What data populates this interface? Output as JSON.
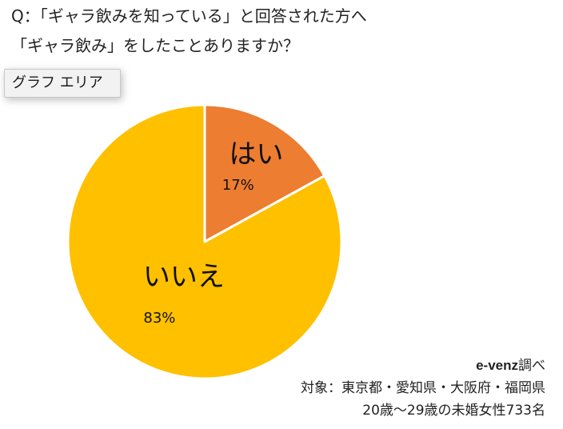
{
  "question": {
    "line1": "Q：「ギャラ飲みを知っている」と回答された方へ",
    "line2": "「ギャラ飲み」をしたことありますか？"
  },
  "graph_area_button": {
    "label": "グラフ エリア"
  },
  "chart_data": {
    "type": "pie",
    "title": "",
    "slices": [
      {
        "label": "はい",
        "value": 17,
        "value_label": "17%",
        "color": "#ED7D31"
      },
      {
        "label": "いいえ",
        "value": 83,
        "value_label": "83%",
        "color": "#FFC000"
      }
    ],
    "start_angle_deg": 0,
    "direction": "clockwise",
    "slice_border_color": "#ffffff",
    "legend": "none"
  },
  "source": {
    "brand": "e-venz",
    "brand_suffix": "調べ",
    "target": "対象：東京都・愛知県・大阪府・福岡県",
    "sample": "20歳〜29歳の未婚女性733名"
  }
}
